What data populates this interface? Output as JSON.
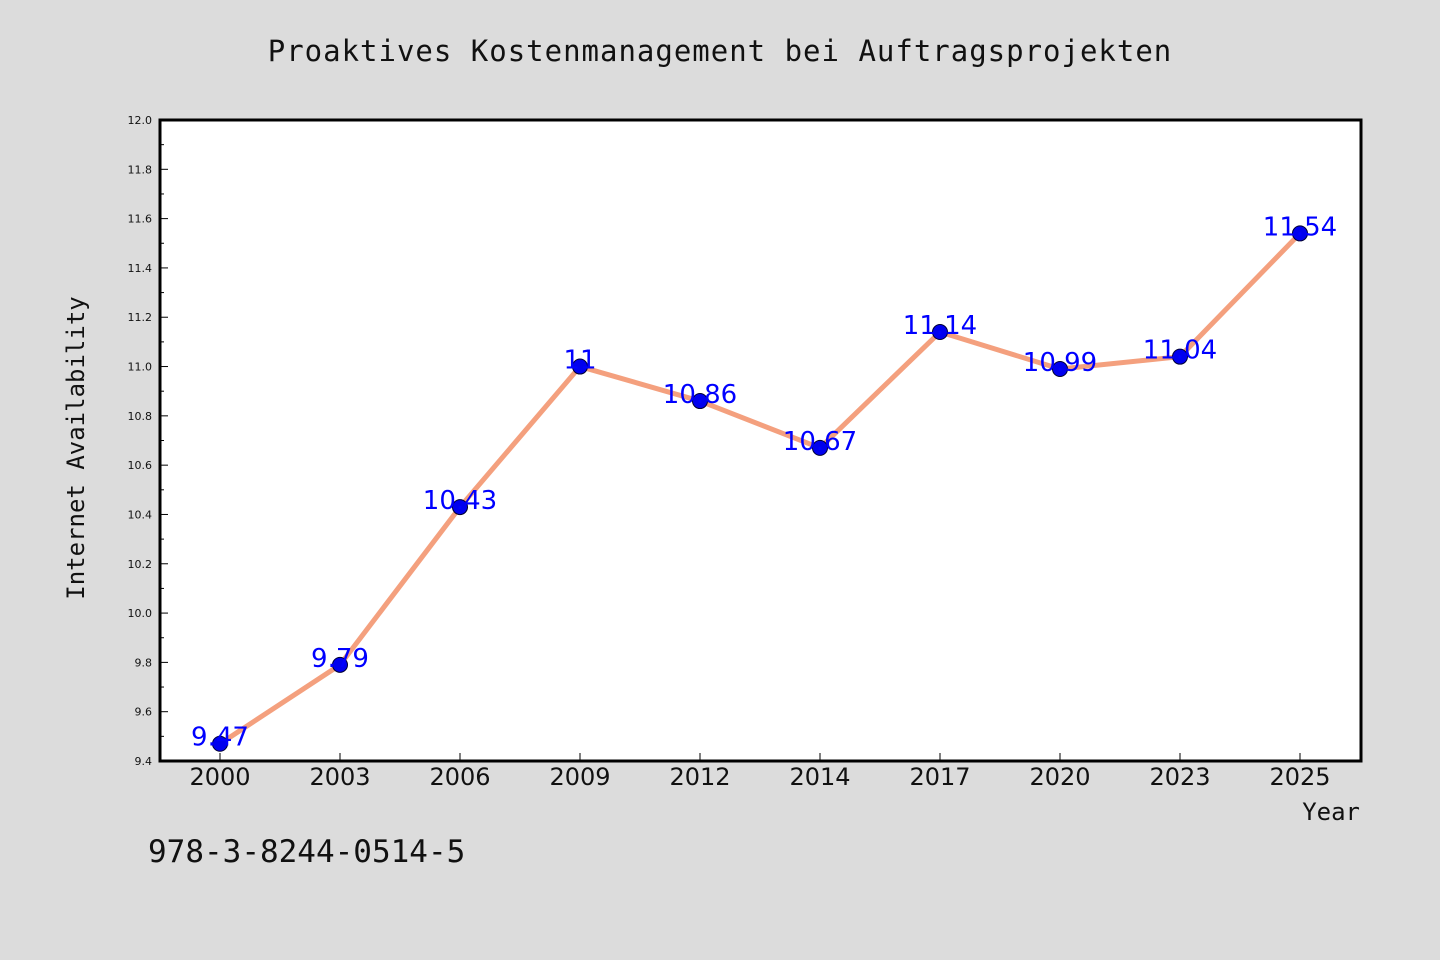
{
  "figure": {
    "title": "Proaktives Kostenmanagement bei Auftragsprojekten",
    "footer_id": "978-3-8244-0514-5"
  },
  "chart_data": {
    "type": "line",
    "title": "Proaktives Kostenmanagement bei Auftragsprojekten",
    "xlabel": "Year",
    "ylabel": "Internet Availability",
    "categories": [
      "2000",
      "2003",
      "2006",
      "2009",
      "2012",
      "2014",
      "2017",
      "2020",
      "2023",
      "2025"
    ],
    "series": [
      {
        "values": [
          9.47,
          9.79,
          10.43,
          11,
          10.86,
          10.67,
          11.14,
          10.99,
          11.04,
          11.54
        ],
        "line_color": "#f4a07e",
        "marker_color": "#0000ee"
      }
    ],
    "data_labels": [
      "9.47",
      "9.79",
      "10.43",
      "11",
      "10.86",
      "10.67",
      "11.14",
      "10.99",
      "11.04",
      "11.54"
    ],
    "ylim": [
      9.4,
      12.0
    ],
    "y_ticks": [
      "9.4",
      "9.6",
      "9.8",
      "10.0",
      "10.2",
      "10.4",
      "10.6",
      "10.8",
      "11.0",
      "11.2",
      "11.4",
      "11.6",
      "11.8",
      "12.0"
    ],
    "grid": false,
    "legend": "none",
    "colors": {
      "background": "#dcdcdc",
      "plot_background": "#ffffff",
      "label_color": "#0000ff"
    }
  }
}
